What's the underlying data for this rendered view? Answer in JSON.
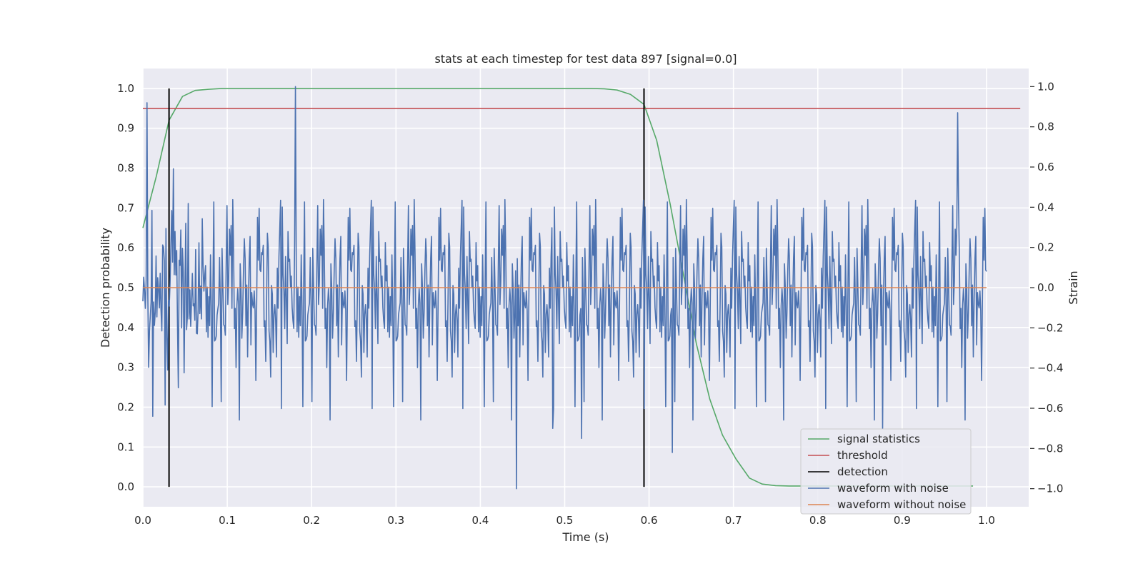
{
  "chart_data": {
    "type": "line",
    "title": "stats at each timestep for test data 897 [signal=0.0]",
    "xlabel": "Time (s)",
    "ylabel": "Detection probability",
    "y2label": "Strain",
    "xlim": [
      0.0,
      1.05
    ],
    "ylim": [
      -0.05,
      1.05
    ],
    "y2lim": [
      -1.09,
      1.09
    ],
    "x_ticks": [
      "0.0",
      "0.1",
      "0.2",
      "0.3",
      "0.4",
      "0.5",
      "0.6",
      "0.7",
      "0.8",
      "0.9",
      "1.0"
    ],
    "y_ticks": [
      "0.0",
      "0.1",
      "0.2",
      "0.3",
      "0.4",
      "0.5",
      "0.6",
      "0.7",
      "0.8",
      "0.9",
      "1.0"
    ],
    "y2_ticks": [
      "−1.0",
      "−0.8",
      "−0.6",
      "−0.4",
      "−0.2",
      "0.0",
      "0.2",
      "0.4",
      "0.6",
      "0.8",
      "1.0"
    ],
    "grid": true,
    "legend_position": "lower-right",
    "series": [
      {
        "name": "signal statistics",
        "color": "#55a868",
        "axis": "left",
        "x": [
          0.0,
          0.016,
          0.031,
          0.047,
          0.062,
          0.078,
          0.094,
          0.2,
          0.3,
          0.4,
          0.5,
          0.531,
          0.547,
          0.562,
          0.578,
          0.594,
          0.609,
          0.625,
          0.641,
          0.656,
          0.672,
          0.687,
          0.703,
          0.719,
          0.734,
          0.75,
          0.766,
          0.8,
          0.9,
          0.984
        ],
        "y": [
          0.65,
          0.78,
          0.92,
          0.98,
          0.995,
          0.998,
          1.0,
          1.0,
          1.0,
          1.0,
          1.0,
          1.0,
          0.999,
          0.996,
          0.985,
          0.96,
          0.87,
          0.71,
          0.53,
          0.36,
          0.22,
          0.13,
          0.07,
          0.022,
          0.007,
          0.003,
          0.002,
          0.002,
          0.002,
          0.002
        ]
      },
      {
        "name": "threshold",
        "color": "#c44e52",
        "axis": "left",
        "x": [
          0.0,
          1.04
        ],
        "y": [
          0.95,
          0.95
        ]
      },
      {
        "name": "detection",
        "color": "#000000",
        "axis": "left",
        "type": "vlines",
        "x": [
          0.031,
          0.594
        ],
        "ymin": 0.0,
        "ymax": 1.0
      },
      {
        "name": "waveform with noise",
        "color": "#4c72b0",
        "axis": "right",
        "n_samples": 1024,
        "x_range": [
          0.0,
          1.0
        ],
        "seed": 897,
        "std": 0.26,
        "features": [
          {
            "x": 0.181,
            "y": 1.0
          },
          {
            "x": 0.443,
            "y": -1.0
          },
          {
            "x": 0.966,
            "y": 0.87
          },
          {
            "x": 0.012,
            "y": -0.64
          },
          {
            "x": 0.628,
            "y": -0.82
          },
          {
            "x": 0.52,
            "y": -0.75
          },
          {
            "x": 0.486,
            "y": -0.7
          },
          {
            "x": 0.877,
            "y": -0.7
          }
        ]
      },
      {
        "name": "waveform without noise",
        "color": "#dd8452",
        "axis": "right",
        "x": [
          0.0,
          1.0
        ],
        "y": [
          0.0,
          0.0
        ]
      }
    ]
  }
}
